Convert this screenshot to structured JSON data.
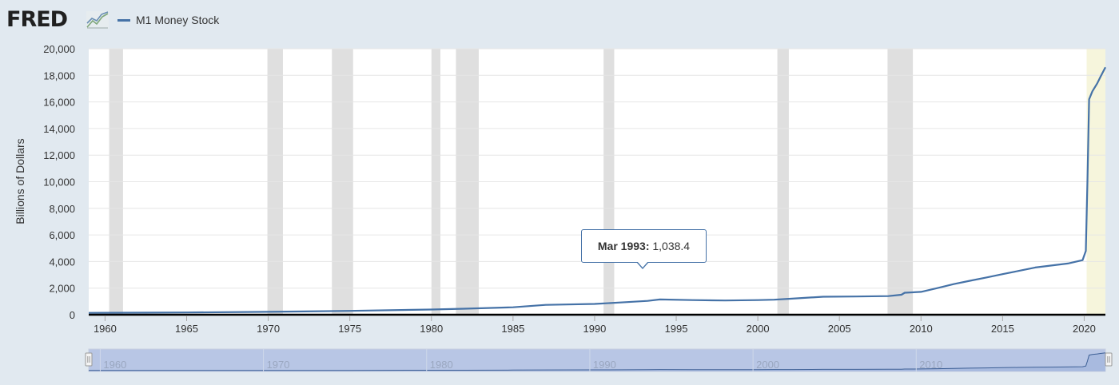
{
  "header": {
    "logo_text": "FRED",
    "logo_icon": "chart-line-icon",
    "brand_color": "#202020"
  },
  "tooltip": {
    "date": "Mar 1993:",
    "value": "1,038.4"
  },
  "colors": {
    "series": "#4572a7",
    "recession": "#dfdfdf",
    "highlight": "#f6f5dc",
    "background": "#e1e9f0",
    "plot_bg": "#ffffff",
    "navigator_fill": "#b8c6e5"
  },
  "chart_data": {
    "type": "line",
    "ylabel": "Billions of Dollars",
    "xlabel": "",
    "ylim": [
      0,
      20000
    ],
    "xlim": [
      1959.0,
      2021.3
    ],
    "y_ticks": [
      "0",
      "2,000",
      "4,000",
      "6,000",
      "8,000",
      "10,000",
      "12,000",
      "14,000",
      "16,000",
      "18,000",
      "20,000"
    ],
    "y_tick_values": [
      0,
      2000,
      4000,
      6000,
      8000,
      10000,
      12000,
      14000,
      16000,
      18000,
      20000
    ],
    "x_ticks": [
      "1960",
      "1965",
      "1970",
      "1975",
      "1980",
      "1985",
      "1990",
      "1995",
      "2000",
      "2005",
      "2010",
      "2015",
      "2020"
    ],
    "x_tick_values": [
      1960,
      1965,
      1970,
      1975,
      1980,
      1985,
      1990,
      1995,
      2000,
      2005,
      2010,
      2015,
      2020
    ],
    "navigator_ticks": [
      "1960",
      "1970",
      "1980",
      "1990",
      "2000",
      "2010"
    ],
    "navigator_tick_values": [
      1960,
      1970,
      1980,
      1990,
      2000,
      2010
    ],
    "legend_position": "top-left",
    "grid": true,
    "recessions": [
      [
        1960.25,
        1961.1
      ],
      [
        1969.95,
        1970.9
      ],
      [
        1973.9,
        1975.2
      ],
      [
        1980.0,
        1980.55
      ],
      [
        1981.5,
        1982.9
      ],
      [
        1990.55,
        1991.2
      ],
      [
        2001.2,
        2001.9
      ],
      [
        2007.95,
        2009.5
      ]
    ],
    "highlight_range": [
      2020.15,
      2021.3
    ],
    "series": [
      {
        "name": "M1 Money Stock",
        "x": [
          1959.0,
          1965.0,
          1970.0,
          1975.0,
          1980.0,
          1982.0,
          1985.0,
          1987.0,
          1990.0,
          1992.0,
          1993.25,
          1994.0,
          1996.0,
          1998.0,
          2000.0,
          2001.0,
          2002.0,
          2004.0,
          2006.0,
          2008.0,
          2008.8,
          2009.0,
          2010.0,
          2011.0,
          2012.0,
          2013.0,
          2014.0,
          2015.0,
          2016.0,
          2017.0,
          2018.0,
          2019.0,
          2019.9,
          2020.1,
          2020.2,
          2020.3,
          2020.5,
          2020.8,
          2021.0,
          2021.3
        ],
        "values": [
          140,
          170,
          215,
          290,
          390,
          450,
          560,
          740,
          810,
          950,
          1038.4,
          1150,
          1100,
          1070,
          1100,
          1130,
          1200,
          1350,
          1370,
          1400,
          1500,
          1650,
          1720,
          2000,
          2300,
          2550,
          2800,
          3050,
          3300,
          3550,
          3700,
          3850,
          4100,
          4800,
          10000,
          16200,
          16800,
          17400,
          17900,
          18600
        ]
      }
    ]
  }
}
